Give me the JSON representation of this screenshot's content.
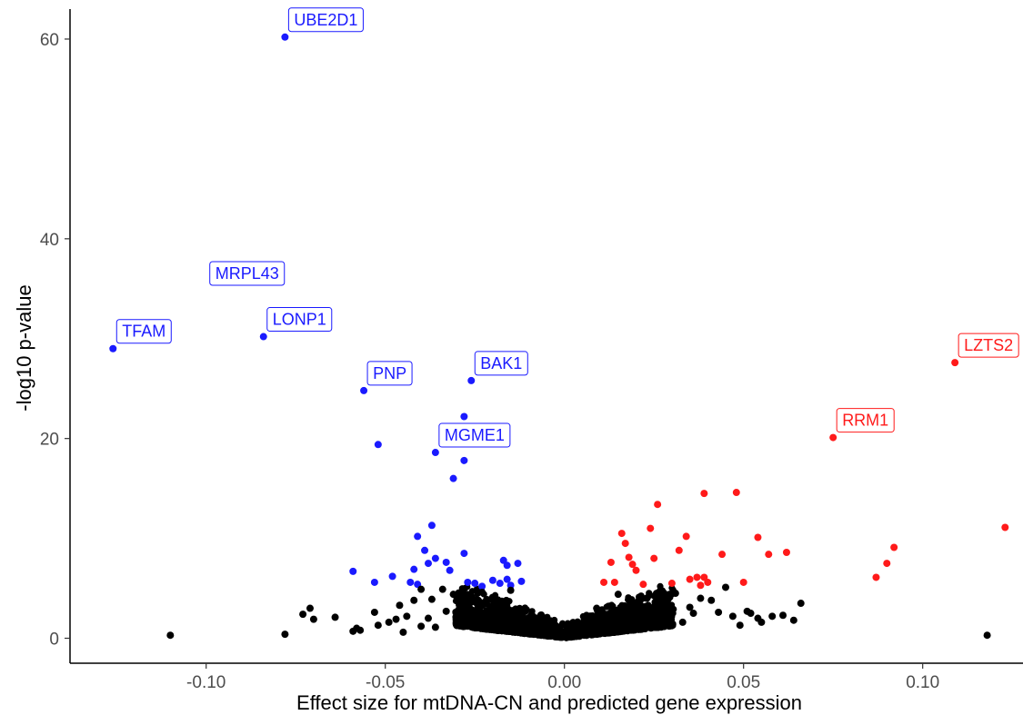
{
  "chart_data": {
    "type": "scatter",
    "title": "",
    "xlabel": "Effect size for mtDNA-CN and predicted gene expression",
    "ylabel": "-log10 p-value",
    "xlim": [
      -0.138,
      0.128
    ],
    "ylim": [
      -2.5,
      63
    ],
    "xticks": [
      -0.1,
      -0.05,
      0.0,
      0.05,
      0.1
    ],
    "xtick_labels": [
      "-0.10",
      "-0.05",
      "0.00",
      "0.05",
      "0.10"
    ],
    "yticks": [
      0,
      20,
      40,
      60
    ],
    "ytick_labels": [
      "0",
      "20",
      "40",
      "60"
    ],
    "grid": false,
    "legend": "none",
    "colors": {
      "negative": "#1a1aff",
      "positive": "#ff1a1a",
      "ns": "#000000"
    },
    "series": [
      {
        "color": "#1a1aff",
        "points": [
          [
            -0.078,
            60.2
          ],
          [
            -0.126,
            29.0
          ],
          [
            -0.084,
            30.2
          ],
          [
            -0.056,
            24.8
          ],
          [
            -0.026,
            25.8
          ],
          [
            -0.052,
            19.4
          ],
          [
            -0.036,
            18.6
          ],
          [
            -0.028,
            22.2
          ],
          [
            -0.028,
            17.8
          ],
          [
            -0.031,
            16.0
          ],
          [
            -0.037,
            11.3
          ],
          [
            -0.041,
            10.2
          ],
          [
            -0.039,
            8.8
          ],
          [
            -0.036,
            8.0
          ],
          [
            -0.038,
            7.5
          ],
          [
            -0.033,
            7.6
          ],
          [
            -0.028,
            8.5
          ],
          [
            -0.017,
            7.8
          ],
          [
            -0.016,
            7.3
          ],
          [
            -0.013,
            7.5
          ],
          [
            -0.042,
            6.9
          ],
          [
            -0.048,
            6.2
          ],
          [
            -0.032,
            6.8
          ],
          [
            -0.059,
            6.7
          ],
          [
            -0.053,
            5.6
          ],
          [
            -0.043,
            5.6
          ],
          [
            -0.041,
            5.4
          ],
          [
            -0.027,
            5.6
          ],
          [
            -0.025,
            5.5
          ],
          [
            -0.023,
            5.2
          ],
          [
            -0.02,
            5.8
          ],
          [
            -0.018,
            5.5
          ],
          [
            -0.016,
            5.9
          ],
          [
            -0.015,
            5.3
          ],
          [
            -0.012,
            5.7
          ]
        ]
      },
      {
        "color": "#ff1a1a",
        "points": [
          [
            0.109,
            27.6
          ],
          [
            0.075,
            20.1
          ],
          [
            0.123,
            11.1
          ],
          [
            0.092,
            9.1
          ],
          [
            0.09,
            7.5
          ],
          [
            0.087,
            6.1
          ],
          [
            0.048,
            14.6
          ],
          [
            0.039,
            14.5
          ],
          [
            0.026,
            13.4
          ],
          [
            0.024,
            11.0
          ],
          [
            0.016,
            10.5
          ],
          [
            0.034,
            10.2
          ],
          [
            0.054,
            10.1
          ],
          [
            0.017,
            9.5
          ],
          [
            0.032,
            8.8
          ],
          [
            0.062,
            8.6
          ],
          [
            0.044,
            8.4
          ],
          [
            0.057,
            8.4
          ],
          [
            0.018,
            8.1
          ],
          [
            0.025,
            8.0
          ],
          [
            0.019,
            7.4
          ],
          [
            0.013,
            7.6
          ],
          [
            0.02,
            6.8
          ],
          [
            0.037,
            6.1
          ],
          [
            0.039,
            6.1
          ],
          [
            0.035,
            5.9
          ],
          [
            0.05,
            5.6
          ],
          [
            0.011,
            5.6
          ],
          [
            0.014,
            5.6
          ],
          [
            0.022,
            5.4
          ],
          [
            0.03,
            5.5
          ],
          [
            0.038,
            5.3
          ],
          [
            0.04,
            5.6
          ]
        ]
      },
      {
        "color": "#000000",
        "points": [
          [
            -0.11,
            0.3
          ],
          [
            -0.078,
            0.4
          ],
          [
            -0.073,
            2.4
          ],
          [
            -0.071,
            3.0
          ],
          [
            -0.07,
            1.9
          ],
          [
            -0.064,
            2.1
          ],
          [
            -0.059,
            0.7
          ],
          [
            -0.058,
            1.0
          ],
          [
            -0.057,
            0.8
          ],
          [
            -0.053,
            2.6
          ],
          [
            -0.052,
            1.3
          ],
          [
            -0.049,
            1.6
          ],
          [
            -0.047,
            1.9
          ],
          [
            -0.046,
            3.3
          ],
          [
            -0.045,
            0.6
          ],
          [
            -0.044,
            2.2
          ],
          [
            -0.042,
            3.8
          ],
          [
            -0.04,
            4.9
          ],
          [
            -0.04,
            1.2
          ],
          [
            -0.038,
            2.0
          ],
          [
            -0.037,
            3.9
          ],
          [
            -0.036,
            1.1
          ],
          [
            -0.034,
            4.9
          ],
          [
            -0.033,
            2.7
          ],
          [
            -0.031,
            4.4
          ],
          [
            -0.029,
            1.8
          ],
          [
            -0.027,
            3.6
          ],
          [
            -0.025,
            2.3
          ],
          [
            -0.023,
            4.6
          ],
          [
            -0.021,
            1.4
          ],
          [
            -0.019,
            3.3
          ],
          [
            -0.017,
            2.1
          ],
          [
            -0.015,
            4.8
          ],
          [
            -0.013,
            1.6
          ],
          [
            -0.011,
            2.9
          ],
          [
            -0.009,
            1.2
          ],
          [
            -0.007,
            1.9
          ],
          [
            -0.005,
            0.9
          ],
          [
            -0.003,
            0.6
          ],
          [
            -0.001,
            0.3
          ],
          [
            0.001,
            0.3
          ],
          [
            0.003,
            0.6
          ],
          [
            0.005,
            1.0
          ],
          [
            0.007,
            1.8
          ],
          [
            0.009,
            3.0
          ],
          [
            0.011,
            1.5
          ],
          [
            0.013,
            2.6
          ],
          [
            0.015,
            4.4
          ],
          [
            0.017,
            1.9
          ],
          [
            0.019,
            3.3
          ],
          [
            0.021,
            2.4
          ],
          [
            0.023,
            4.0
          ],
          [
            0.025,
            1.5
          ],
          [
            0.027,
            3.6
          ],
          [
            0.029,
            2.1
          ],
          [
            0.031,
            4.5
          ],
          [
            0.033,
            1.6
          ],
          [
            0.035,
            3.1
          ],
          [
            0.036,
            2.5
          ],
          [
            0.038,
            4.0
          ],
          [
            0.041,
            3.8
          ],
          [
            0.043,
            2.6
          ],
          [
            0.045,
            5.1
          ],
          [
            0.047,
            2.2
          ],
          [
            0.049,
            1.3
          ],
          [
            0.051,
            2.7
          ],
          [
            0.052,
            2.5
          ],
          [
            0.054,
            2.0
          ],
          [
            0.055,
            1.6
          ],
          [
            0.058,
            2.2
          ],
          [
            0.061,
            2.3
          ],
          [
            0.066,
            3.5
          ],
          [
            0.064,
            1.8
          ],
          [
            0.118,
            0.3
          ]
        ]
      }
    ],
    "annotations": [
      {
        "text": "UBE2D1",
        "x": -0.078,
        "y": 60.2,
        "color": "#1a1aff"
      },
      {
        "text": "MRPL43",
        "x": -0.1,
        "y": 34.8,
        "color": "#1a1aff"
      },
      {
        "text": "TFAM",
        "x": -0.126,
        "y": 29.0,
        "color": "#1a1aff"
      },
      {
        "text": "LONP1",
        "x": -0.084,
        "y": 30.2,
        "color": "#1a1aff"
      },
      {
        "text": "PNP",
        "x": -0.056,
        "y": 24.8,
        "color": "#1a1aff"
      },
      {
        "text": "BAK1",
        "x": -0.026,
        "y": 25.8,
        "color": "#1a1aff"
      },
      {
        "text": "MGME1",
        "x": -0.036,
        "y": 18.6,
        "color": "#1a1aff"
      },
      {
        "text": "LZTS2",
        "x": 0.109,
        "y": 27.6,
        "color": "#ff1a1a"
      },
      {
        "text": "RRM1",
        "x": 0.075,
        "y": 20.1,
        "color": "#ff1a1a"
      }
    ]
  }
}
